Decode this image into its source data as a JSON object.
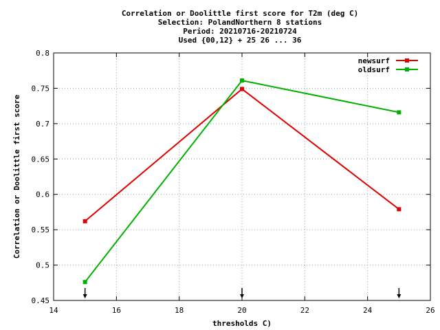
{
  "chart_data": {
    "type": "line",
    "title_lines": [
      "Correlation or Doolittle first score  for T2m (deg C)",
      "Selection: PolandNorthern      8 stations",
      "Period: 20210716-20210724",
      "Used {00,12} + 25 26 ... 36"
    ],
    "xlabel": "thresholds C)",
    "ylabel": "Correlation or Doolittle first score",
    "xlim": [
      14,
      26
    ],
    "ylim": [
      0.45,
      0.8
    ],
    "x_ticks": [
      "14",
      "16",
      "18",
      "20",
      "22",
      "24",
      "26"
    ],
    "y_ticks": [
      "0.45",
      "0.5",
      "0.55",
      "0.6",
      "0.65",
      "0.7",
      "0.75",
      "0.8"
    ],
    "grid": true,
    "legend_position": "top-right",
    "x": [
      15,
      20,
      25
    ],
    "series": [
      {
        "name": "newsurf",
        "color": "#e00000",
        "values": [
          0.562,
          0.749,
          0.579
        ]
      },
      {
        "name": "oldsurf",
        "color": "#00b000",
        "values": [
          0.476,
          0.761,
          0.716
        ]
      }
    ],
    "threshold_arrows": [
      15,
      20,
      25
    ]
  }
}
